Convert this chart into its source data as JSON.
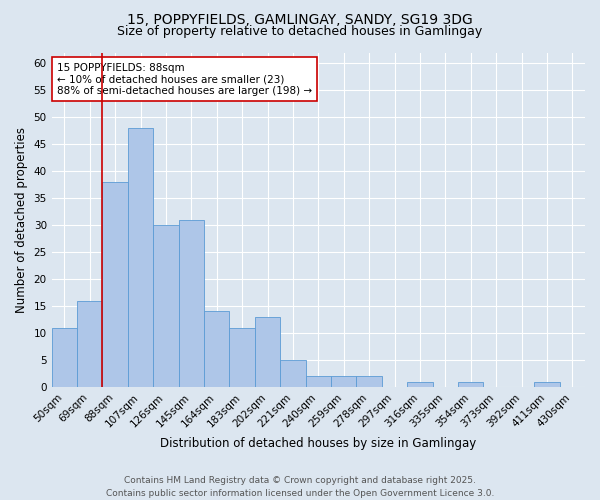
{
  "title_line1": "15, POPPYFIELDS, GAMLINGAY, SANDY, SG19 3DG",
  "title_line2": "Size of property relative to detached houses in Gamlingay",
  "xlabel": "Distribution of detached houses by size in Gamlingay",
  "ylabel": "Number of detached properties",
  "categories": [
    "50sqm",
    "69sqm",
    "88sqm",
    "107sqm",
    "126sqm",
    "145sqm",
    "164sqm",
    "183sqm",
    "202sqm",
    "221sqm",
    "240sqm",
    "259sqm",
    "278sqm",
    "297sqm",
    "316sqm",
    "335sqm",
    "354sqm",
    "373sqm",
    "392sqm",
    "411sqm",
    "430sqm"
  ],
  "values": [
    11,
    16,
    38,
    48,
    30,
    31,
    14,
    11,
    13,
    5,
    2,
    2,
    2,
    0,
    1,
    0,
    1,
    0,
    0,
    1,
    0
  ],
  "bar_color": "#aec6e8",
  "bar_edge_color": "#5b9bd5",
  "highlight_index": 2,
  "highlight_line_color": "#cc0000",
  "annotation_text": "15 POPPYFIELDS: 88sqm\n← 10% of detached houses are smaller (23)\n88% of semi-detached houses are larger (198) →",
  "annotation_box_color": "#ffffff",
  "annotation_box_edge": "#cc0000",
  "ylim": [
    0,
    62
  ],
  "yticks": [
    0,
    5,
    10,
    15,
    20,
    25,
    30,
    35,
    40,
    45,
    50,
    55,
    60
  ],
  "background_color": "#dce6f0",
  "plot_background": "#dce6f0",
  "footer_text": "Contains HM Land Registry data © Crown copyright and database right 2025.\nContains public sector information licensed under the Open Government Licence 3.0.",
  "title_fontsize": 10,
  "subtitle_fontsize": 9,
  "axis_label_fontsize": 8.5,
  "tick_fontsize": 7.5,
  "footer_fontsize": 6.5
}
